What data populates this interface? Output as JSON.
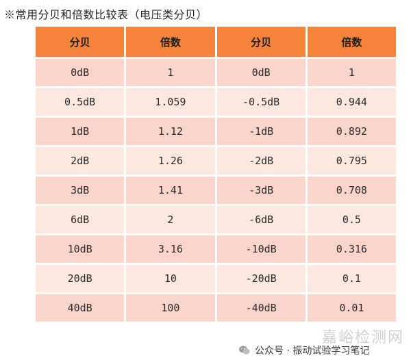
{
  "caption": "※常用分贝和倍数比较表（电压类分贝）",
  "table": {
    "headers": [
      "分贝",
      "倍数",
      "分贝",
      "倍数"
    ],
    "rows": [
      [
        "0dB",
        "1",
        "0dB",
        "1"
      ],
      [
        "0.5dB",
        "1.059",
        "-0.5dB",
        "0.944"
      ],
      [
        "1dB",
        "1.12",
        "-1dB",
        "0.892"
      ],
      [
        "2dB",
        "1.26",
        "-2dB",
        "0.795"
      ],
      [
        "3dB",
        "1.41",
        "-3dB",
        "0.708"
      ],
      [
        "6dB",
        "2",
        "-6dB",
        "0.5"
      ],
      [
        "10dB",
        "3.16",
        "-10dB",
        "0.316"
      ],
      [
        "20dB",
        "10",
        "-20dB",
        "0.1"
      ],
      [
        "40dB",
        "100",
        "-40dB",
        "0.01"
      ]
    ]
  },
  "footer": {
    "label": "公众号 · 振动试验学习笔记"
  },
  "watermark": "嘉峪检测网",
  "colors": {
    "header_bg": "#f5843a",
    "row_dark": "#fbd4cb",
    "row_light": "#fde8e0"
  }
}
